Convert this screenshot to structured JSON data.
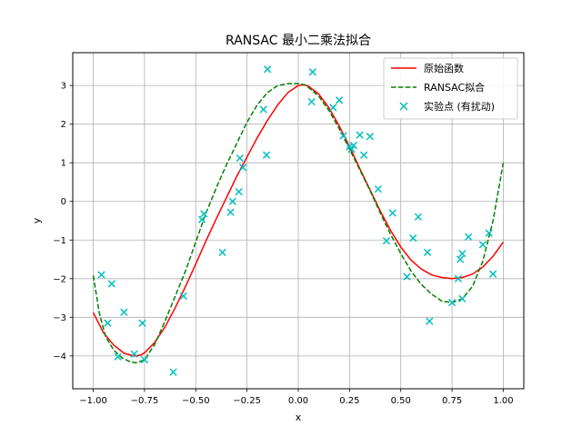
{
  "chart_data": {
    "type": "scatter",
    "title": "RANSAC 最小二乘法拟合",
    "xlabel": "x",
    "ylabel": "y",
    "xlim": [
      -1.1,
      1.1
    ],
    "ylim": [
      -4.85,
      3.85
    ],
    "xticks": [
      -1.0,
      -0.75,
      -0.5,
      -0.25,
      0.0,
      0.25,
      0.5,
      0.75,
      1.0
    ],
    "xtick_labels": [
      "−1.00",
      "−0.75",
      "−0.50",
      "−0.25",
      "0.00",
      "0.25",
      "0.50",
      "0.75",
      "1.00"
    ],
    "yticks": [
      -4,
      -3,
      -2,
      -1,
      0,
      1,
      2,
      3
    ],
    "ytick_labels": [
      "−4",
      "−3",
      "−2",
      "−1",
      "0",
      "1",
      "2",
      "3"
    ],
    "grid": true,
    "legend_position": "top-right",
    "series": [
      {
        "name": "原始函数",
        "kind": "line",
        "style": "solid",
        "color": "#ff0000",
        "x": [
          -1.0,
          -0.95,
          -0.9,
          -0.85,
          -0.8,
          -0.77,
          -0.75,
          -0.7,
          -0.65,
          -0.6,
          -0.55,
          -0.5,
          -0.45,
          -0.4,
          -0.35,
          -0.3,
          -0.25,
          -0.2,
          -0.15,
          -0.1,
          -0.05,
          0.0,
          0.03,
          0.05,
          0.1,
          0.15,
          0.2,
          0.25,
          0.3,
          0.35,
          0.4,
          0.45,
          0.5,
          0.55,
          0.6,
          0.65,
          0.7,
          0.75,
          0.8,
          0.85,
          0.9,
          0.95,
          1.0
        ],
        "y": [
          -2.88,
          -3.4,
          -3.72,
          -3.93,
          -4.0,
          -3.98,
          -3.92,
          -3.65,
          -3.25,
          -2.75,
          -2.2,
          -1.62,
          -1.02,
          -0.45,
          0.1,
          0.65,
          1.15,
          1.65,
          2.1,
          2.5,
          2.82,
          3.0,
          3.02,
          2.98,
          2.78,
          2.42,
          1.95,
          1.42,
          0.85,
          0.3,
          -0.25,
          -0.75,
          -1.18,
          -1.52,
          -1.75,
          -1.9,
          -1.97,
          -2.0,
          -1.97,
          -1.88,
          -1.7,
          -1.42,
          -1.05
        ]
      },
      {
        "name": "RANSAC拟合",
        "kind": "line",
        "style": "dashed",
        "color": "#008000",
        "x": [
          -1.0,
          -0.97,
          -0.94,
          -0.9,
          -0.86,
          -0.82,
          -0.79,
          -0.75,
          -0.7,
          -0.65,
          -0.6,
          -0.55,
          -0.5,
          -0.45,
          -0.4,
          -0.35,
          -0.3,
          -0.25,
          -0.2,
          -0.15,
          -0.1,
          -0.05,
          0.0,
          0.03,
          0.05,
          0.1,
          0.15,
          0.2,
          0.25,
          0.3,
          0.35,
          0.4,
          0.45,
          0.5,
          0.55,
          0.6,
          0.65,
          0.7,
          0.75,
          0.8,
          0.85,
          0.9,
          0.95,
          1.0
        ],
        "y": [
          -1.92,
          -2.9,
          -3.5,
          -3.85,
          -4.05,
          -4.15,
          -4.18,
          -4.1,
          -3.7,
          -3.1,
          -2.45,
          -1.8,
          -1.05,
          -0.3,
          0.35,
          0.95,
          1.5,
          2.05,
          2.5,
          2.82,
          3.0,
          3.05,
          3.05,
          3.02,
          2.95,
          2.72,
          2.35,
          1.88,
          1.35,
          0.82,
          0.28,
          -0.3,
          -0.85,
          -1.35,
          -1.8,
          -2.15,
          -2.4,
          -2.58,
          -2.62,
          -2.52,
          -2.2,
          -1.55,
          -0.5,
          1.0
        ]
      },
      {
        "name": "实验点 (有扰动)",
        "kind": "scatter",
        "marker": "x",
        "color": "#00bfbf",
        "x": [
          -0.96,
          -0.93,
          -0.91,
          -0.88,
          -0.85,
          -0.8,
          -0.76,
          -0.75,
          -0.61,
          -0.56,
          -0.47,
          -0.46,
          -0.37,
          -0.33,
          -0.32,
          -0.29,
          -0.285,
          -0.27,
          -0.17,
          -0.155,
          -0.15,
          0.065,
          0.07,
          0.17,
          0.2,
          0.22,
          0.25,
          0.26,
          0.27,
          0.3,
          0.32,
          0.35,
          0.39,
          0.43,
          0.46,
          0.53,
          0.56,
          0.585,
          0.63,
          0.64,
          0.75,
          0.78,
          0.79,
          0.8,
          0.8,
          0.83,
          0.9,
          0.93,
          0.95
        ],
        "y": [
          -1.9,
          -3.15,
          -2.13,
          -4.02,
          -2.87,
          -3.95,
          -3.15,
          -4.1,
          -4.42,
          -2.45,
          -0.47,
          -0.32,
          -1.32,
          -0.28,
          0.0,
          0.25,
          1.12,
          0.88,
          2.38,
          1.2,
          3.42,
          2.58,
          3.35,
          2.43,
          2.62,
          1.7,
          1.42,
          1.35,
          1.45,
          1.72,
          1.2,
          1.68,
          0.32,
          -1.02,
          -0.3,
          -1.95,
          -0.95,
          -0.4,
          -1.32,
          -3.1,
          -2.62,
          -2.0,
          -1.5,
          -1.35,
          -2.52,
          -0.92,
          -1.12,
          -0.82,
          -1.88
        ]
      }
    ]
  }
}
